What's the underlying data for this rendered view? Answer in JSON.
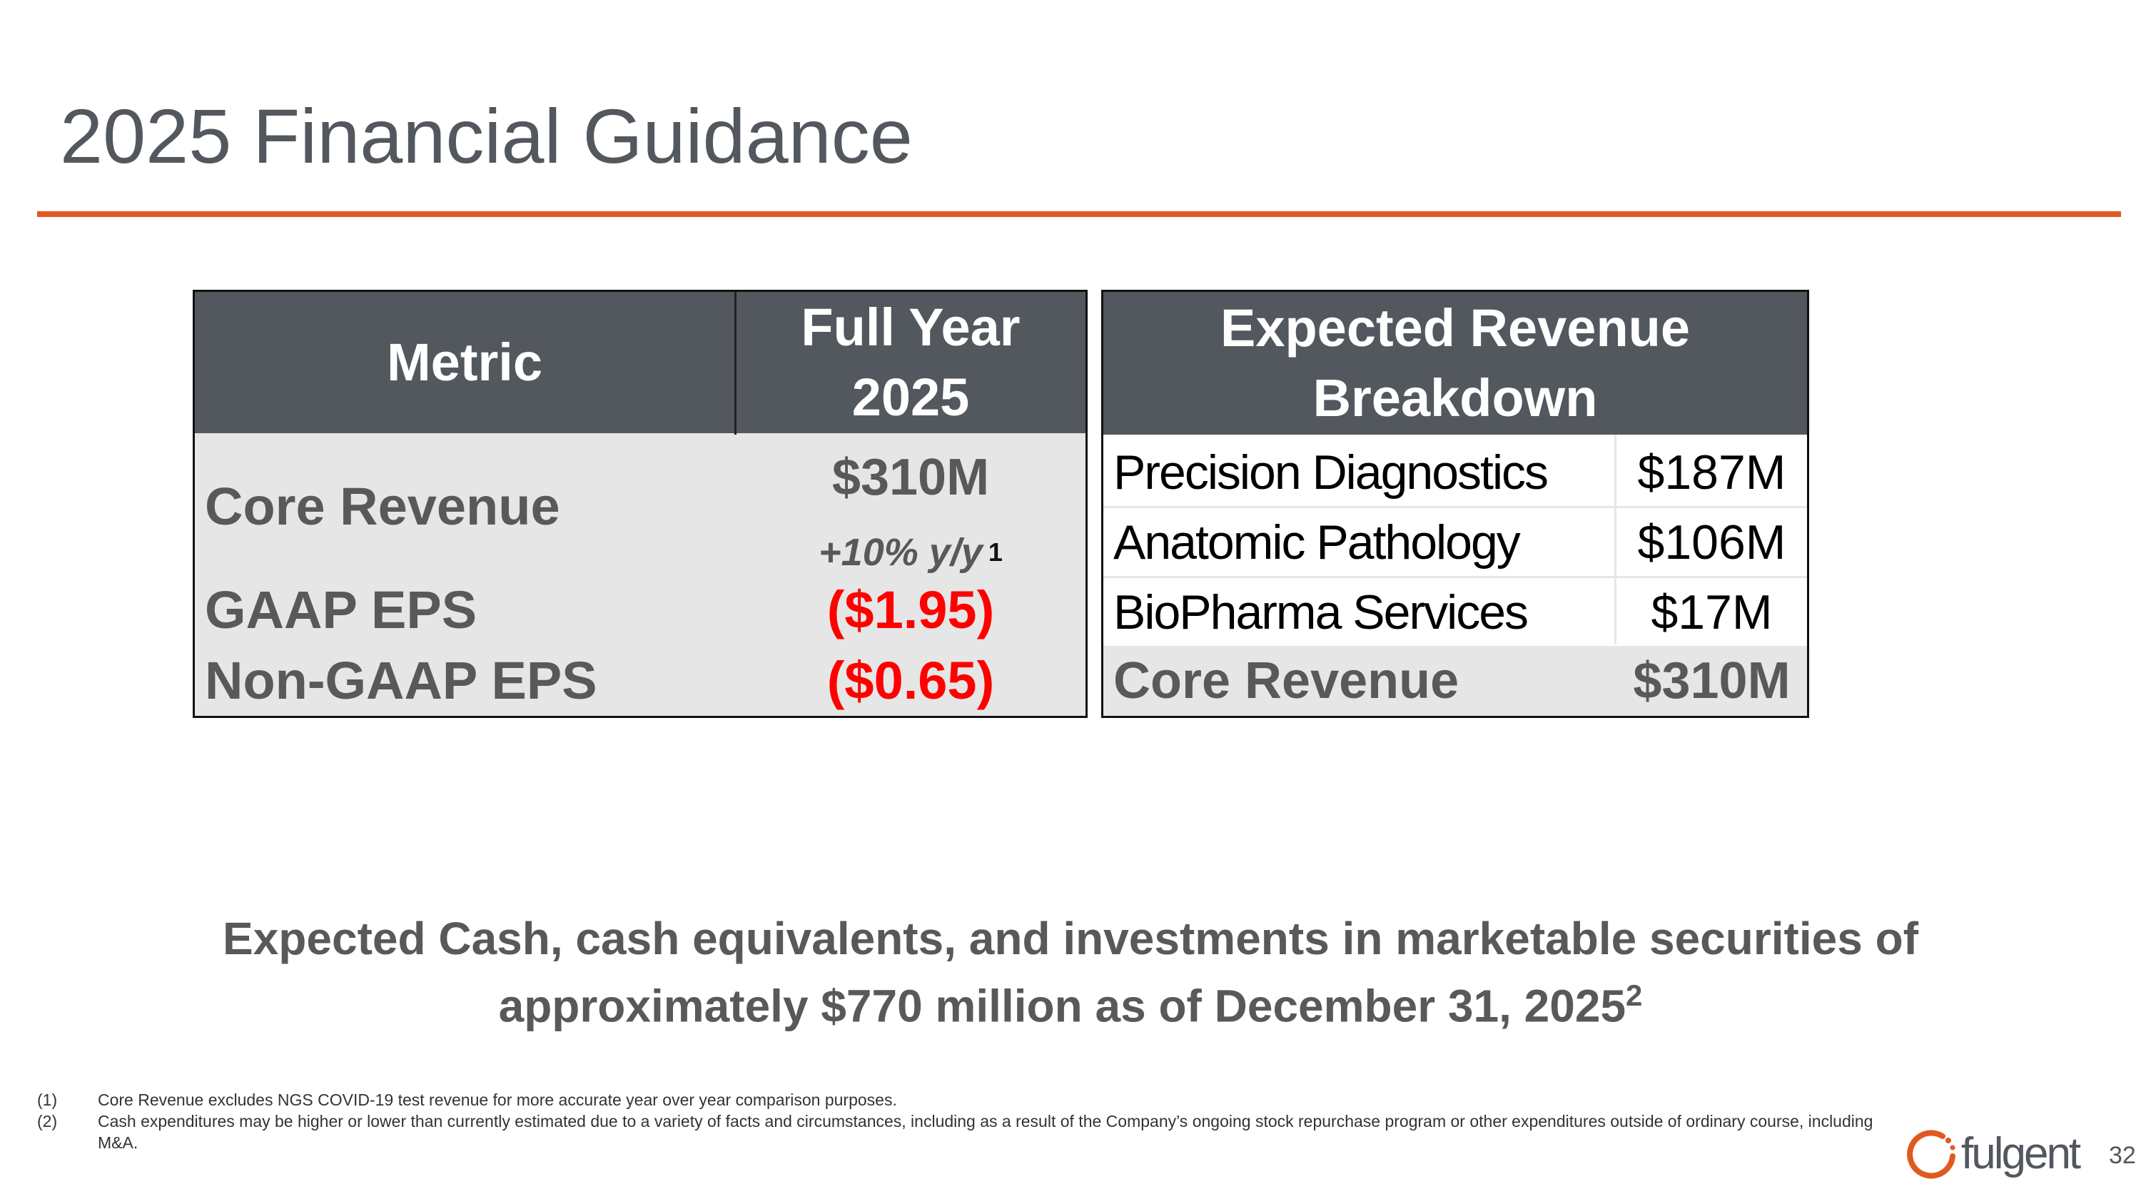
{
  "title": "2025 Financial Guidance",
  "left_table": {
    "headers": [
      "Metric",
      "Full Year 2025"
    ],
    "rows": [
      {
        "metric": "Core Revenue",
        "value": "$310M",
        "sub": "+10% y/y",
        "sup": "1"
      },
      {
        "metric": "GAAP EPS",
        "value": "($1.95)"
      },
      {
        "metric": "Non-GAAP EPS",
        "value": "($0.65)"
      }
    ]
  },
  "right_table": {
    "header": "Expected Revenue Breakdown",
    "rows": [
      {
        "segment": "Precision Diagnostics",
        "value": "$187M"
      },
      {
        "segment": "Anatomic Pathology",
        "value": "$106M"
      },
      {
        "segment": "BioPharma Services",
        "value": "$17M"
      }
    ],
    "total": {
      "segment": "Core Revenue",
      "value": "$310M"
    }
  },
  "cash_statement": {
    "line1": "Expected Cash, cash equivalents, and investments in marketable securities of",
    "line2": "approximately $770 million as of December 31, 2025",
    "sup": "2"
  },
  "footnotes": [
    {
      "num": "(1)",
      "text": "Core Revenue excludes NGS COVID-19 test revenue for more accurate year over year comparison purposes."
    },
    {
      "num": "(2)",
      "text": "Cash expenditures may be higher or lower than currently estimated due to a variety of facts and circumstances, including as a result of the Company’s ongoing stock repurchase program or other expenditures outside of ordinary course, including M&A."
    }
  ],
  "logo": "fulgent",
  "page_number": "32",
  "colors": {
    "accent": "#e05a1f",
    "header": "#53575e",
    "negative": "#ff0000"
  }
}
